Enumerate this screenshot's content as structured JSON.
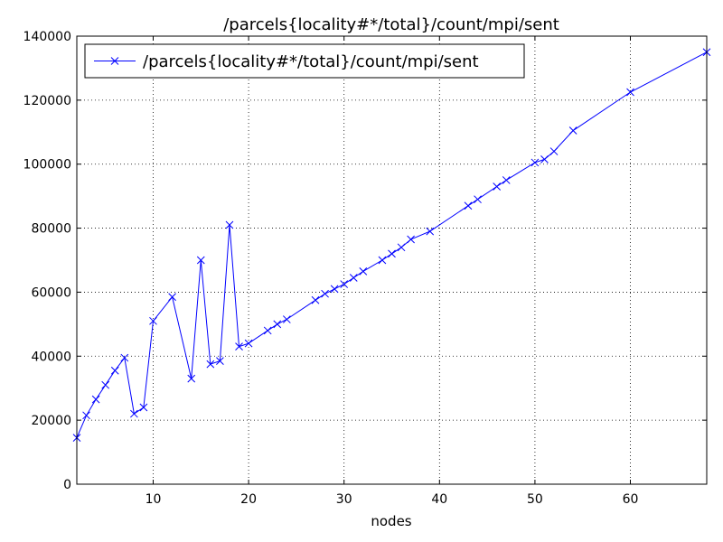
{
  "chart_data": {
    "type": "line",
    "title": "/parcels{locality#*/total}/count/mpi/sent",
    "xlabel": "nodes",
    "ylabel": "",
    "xlim": [
      2,
      68
    ],
    "ylim": [
      0,
      140000
    ],
    "xticks": [
      10,
      20,
      30,
      40,
      50,
      60
    ],
    "yticks": [
      0,
      20000,
      40000,
      60000,
      80000,
      100000,
      120000,
      140000
    ],
    "grid": true,
    "legend_position": "top-left",
    "series": [
      {
        "name": "/parcels{locality#*/total}/count/mpi/sent",
        "color": "#0000ff",
        "marker": "x",
        "points": [
          [
            2,
            14500
          ],
          [
            3,
            21500
          ],
          [
            4,
            26500
          ],
          [
            5,
            31000
          ],
          [
            6,
            35500
          ],
          [
            7,
            39500
          ],
          [
            8,
            22000
          ],
          [
            9,
            24000
          ],
          [
            10,
            51000
          ],
          [
            12,
            58500
          ],
          [
            14,
            33000
          ],
          [
            15,
            70000
          ],
          [
            16,
            37500
          ],
          [
            17,
            38500
          ],
          [
            18,
            81000
          ],
          [
            19,
            43000
          ],
          [
            20,
            44000
          ],
          [
            22,
            48000
          ],
          [
            23,
            50000
          ],
          [
            24,
            51500
          ],
          [
            27,
            57500
          ],
          [
            28,
            59500
          ],
          [
            29,
            61000
          ],
          [
            30,
            62500
          ],
          [
            31,
            64500
          ],
          [
            32,
            66500
          ],
          [
            34,
            70000
          ],
          [
            35,
            72000
          ],
          [
            36,
            74000
          ],
          [
            37,
            76500
          ],
          [
            39,
            79000
          ],
          [
            43,
            87000
          ],
          [
            44,
            89000
          ],
          [
            46,
            93000
          ],
          [
            47,
            95000
          ],
          [
            50,
            100500
          ],
          [
            51,
            101500
          ],
          [
            52,
            104000
          ],
          [
            54,
            110500
          ],
          [
            60,
            122500
          ],
          [
            68,
            135000
          ]
        ]
      }
    ]
  }
}
